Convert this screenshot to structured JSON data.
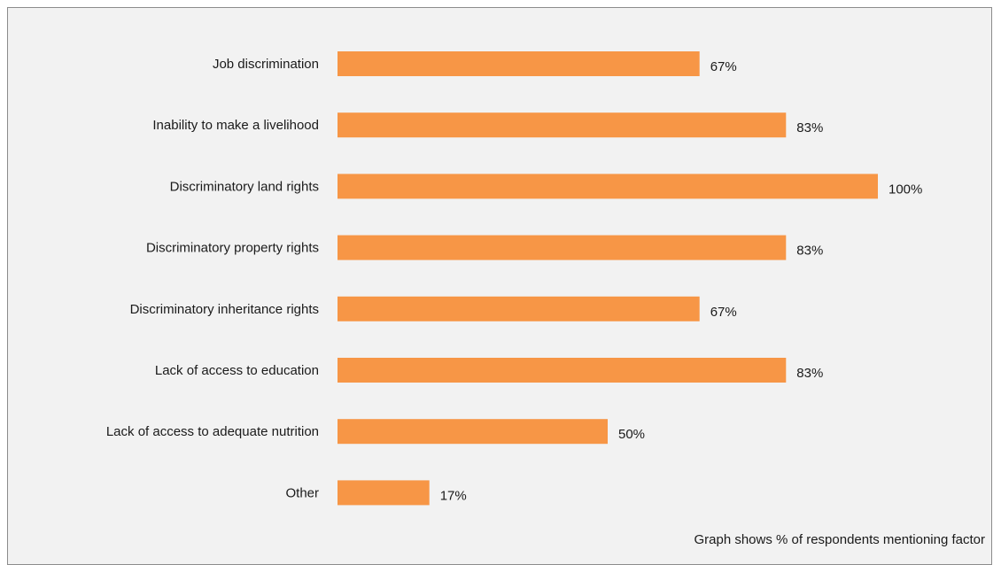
{
  "chart_data": {
    "type": "bar",
    "orientation": "horizontal",
    "categories": [
      "Job discrimination",
      "Inability to make a livelihood",
      "Discriminatory land rights",
      "Discriminatory property rights",
      "Discriminatory inheritance rights",
      "Lack of access to education",
      "Lack of access to adequate nutrition",
      "Other"
    ],
    "values": [
      67,
      83,
      100,
      83,
      67,
      83,
      50,
      17
    ],
    "value_labels": [
      "67%",
      "83%",
      "100%",
      "83%",
      "67%",
      "83%",
      "50%",
      "17%"
    ],
    "xlim": [
      0,
      100
    ],
    "grid": false,
    "legend": "none",
    "bar_color": "#f79646",
    "note": "Graph shows % of respondents mentioning factor"
  }
}
